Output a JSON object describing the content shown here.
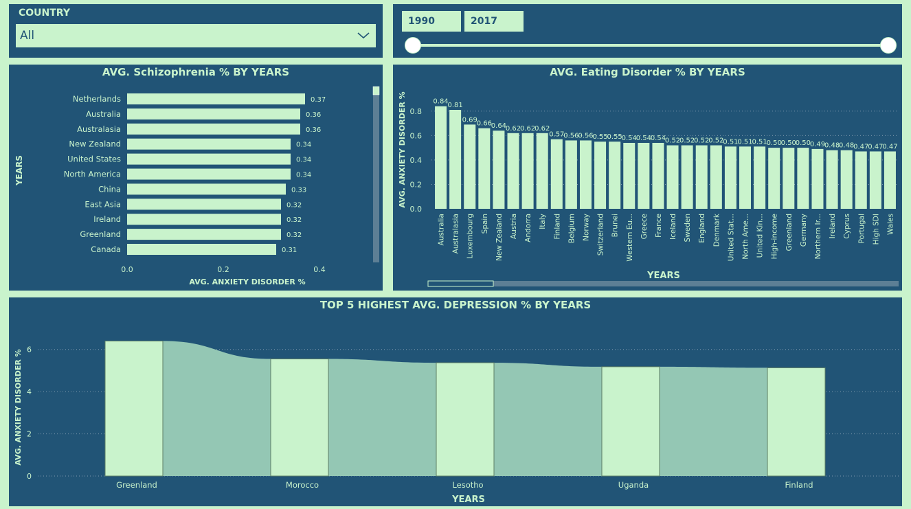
{
  "filters": {
    "country_label": "COUNTRY",
    "country_value": "All",
    "year_start": "1990",
    "year_end": "2017"
  },
  "colors": {
    "panel": "#215476",
    "accent": "#c9f3cc",
    "area": "#94c7b4"
  },
  "chart_data": [
    {
      "type": "bar",
      "orientation": "horizontal",
      "title": "AVG. Schizophrenia % BY YEARS",
      "xlabel": "AVG. ANXIETY DISORDER %",
      "ylabel": "YEARS",
      "xlim": [
        0,
        0.4
      ],
      "xticks": [
        "0.0",
        "0.2",
        "0.4"
      ],
      "categories": [
        "Netherlands",
        "Australia",
        "Australasia",
        "New Zealand",
        "United States",
        "North America",
        "China",
        "East Asia",
        "Ireland",
        "Greenland",
        "Canada"
      ],
      "values": [
        0.37,
        0.36,
        0.36,
        0.34,
        0.34,
        0.34,
        0.33,
        0.32,
        0.32,
        0.32,
        0.31
      ],
      "labels": [
        "0.37",
        "0.36",
        "0.36",
        "0.34",
        "0.34",
        "0.34",
        "0.33",
        "0.32",
        "0.32",
        "0.32",
        "0.31"
      ],
      "grid": false
    },
    {
      "type": "bar",
      "title": "AVG. Eating Disorder % BY YEARS",
      "xlabel": "YEARS",
      "ylabel": "AVG. ANXIETY DISORDER %",
      "ylim": [
        0,
        0.9
      ],
      "yticks": [
        "0.0",
        "0.2",
        "0.4",
        "0.6",
        "0.8"
      ],
      "categories": [
        "Australia",
        "Australasia",
        "Luxembourg",
        "Spain",
        "New Zealand",
        "Austria",
        "Andorra",
        "Italy",
        "Finland",
        "Belgium",
        "Norway",
        "Switzerland",
        "Brunei",
        "Western Eu...",
        "Greece",
        "France",
        "Iceland",
        "Sweden",
        "England",
        "Denmark",
        "United Stat...",
        "North Ame...",
        "United Kin...",
        "High-income",
        "Greenland",
        "Germany",
        "Northern Ir...",
        "Ireland",
        "Cyprus",
        "Portugal",
        "High SDI",
        "Wales"
      ],
      "values": [
        0.84,
        0.81,
        0.69,
        0.66,
        0.64,
        0.62,
        0.62,
        0.62,
        0.57,
        0.56,
        0.56,
        0.55,
        0.55,
        0.54,
        0.54,
        0.54,
        0.52,
        0.52,
        0.52,
        0.52,
        0.51,
        0.51,
        0.51,
        0.5,
        0.5,
        0.5,
        0.49,
        0.48,
        0.48,
        0.47,
        0.47,
        0.47
      ],
      "labels": [
        "0.84",
        "0.81",
        "0.69",
        "0.66",
        "0.64",
        "0.62",
        "0.62",
        "0.62",
        "0.57",
        "0.56",
        "0.56",
        "0.55",
        "0.55",
        "0.54",
        "0.54",
        "0.54",
        "0.52",
        "0.52",
        "0.52",
        "0.52",
        "0.51",
        "0.51",
        "0.51",
        "0.50",
        "0.50",
        "0.50",
        "0.49",
        "0.48",
        "0.48",
        "0.47",
        "0.47",
        "0.47"
      ],
      "grid": true
    },
    {
      "type": "bar",
      "variant": "ribbon",
      "title": "TOP 5 HIGHEST AVG. DEPRESSION % BY YEARS",
      "xlabel": "YEARS",
      "ylabel": "AVG. ANXIETY DISORDER %",
      "ylim": [
        0,
        7
      ],
      "yticks": [
        "0",
        "2",
        "4",
        "6"
      ],
      "categories": [
        "Greenland",
        "Morocco",
        "Lesotho",
        "Uganda",
        "Finland"
      ],
      "values": [
        6.4,
        5.55,
        5.37,
        5.18,
        5.13
      ],
      "grid": true
    }
  ]
}
